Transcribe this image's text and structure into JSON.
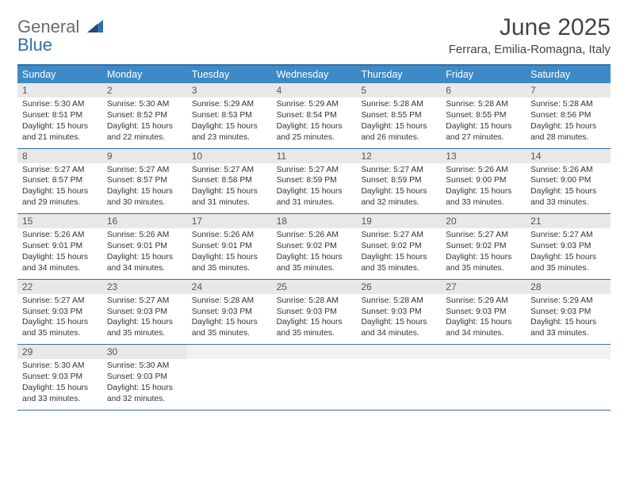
{
  "logo": {
    "line1": "General",
    "line2": "Blue"
  },
  "title": "June 2025",
  "location": "Ferrara, Emilia-Romagna, Italy",
  "colors": {
    "header_bg": "#3d8ac7",
    "border": "#2f6fa8",
    "daynum_bg": "#e8e8e8",
    "empty_bg": "#f2f2f2",
    "text": "#333333",
    "logo_gray": "#6a6a6a",
    "logo_blue": "#2f6fa8"
  },
  "day_labels": [
    "Sunday",
    "Monday",
    "Tuesday",
    "Wednesday",
    "Thursday",
    "Friday",
    "Saturday"
  ],
  "weeks": [
    [
      {
        "n": "1",
        "sr": "Sunrise: 5:30 AM",
        "ss": "Sunset: 8:51 PM",
        "d1": "Daylight: 15 hours",
        "d2": "and 21 minutes."
      },
      {
        "n": "2",
        "sr": "Sunrise: 5:30 AM",
        "ss": "Sunset: 8:52 PM",
        "d1": "Daylight: 15 hours",
        "d2": "and 22 minutes."
      },
      {
        "n": "3",
        "sr": "Sunrise: 5:29 AM",
        "ss": "Sunset: 8:53 PM",
        "d1": "Daylight: 15 hours",
        "d2": "and 23 minutes."
      },
      {
        "n": "4",
        "sr": "Sunrise: 5:29 AM",
        "ss": "Sunset: 8:54 PM",
        "d1": "Daylight: 15 hours",
        "d2": "and 25 minutes."
      },
      {
        "n": "5",
        "sr": "Sunrise: 5:28 AM",
        "ss": "Sunset: 8:55 PM",
        "d1": "Daylight: 15 hours",
        "d2": "and 26 minutes."
      },
      {
        "n": "6",
        "sr": "Sunrise: 5:28 AM",
        "ss": "Sunset: 8:55 PM",
        "d1": "Daylight: 15 hours",
        "d2": "and 27 minutes."
      },
      {
        "n": "7",
        "sr": "Sunrise: 5:28 AM",
        "ss": "Sunset: 8:56 PM",
        "d1": "Daylight: 15 hours",
        "d2": "and 28 minutes."
      }
    ],
    [
      {
        "n": "8",
        "sr": "Sunrise: 5:27 AM",
        "ss": "Sunset: 8:57 PM",
        "d1": "Daylight: 15 hours",
        "d2": "and 29 minutes."
      },
      {
        "n": "9",
        "sr": "Sunrise: 5:27 AM",
        "ss": "Sunset: 8:57 PM",
        "d1": "Daylight: 15 hours",
        "d2": "and 30 minutes."
      },
      {
        "n": "10",
        "sr": "Sunrise: 5:27 AM",
        "ss": "Sunset: 8:58 PM",
        "d1": "Daylight: 15 hours",
        "d2": "and 31 minutes."
      },
      {
        "n": "11",
        "sr": "Sunrise: 5:27 AM",
        "ss": "Sunset: 8:59 PM",
        "d1": "Daylight: 15 hours",
        "d2": "and 31 minutes."
      },
      {
        "n": "12",
        "sr": "Sunrise: 5:27 AM",
        "ss": "Sunset: 8:59 PM",
        "d1": "Daylight: 15 hours",
        "d2": "and 32 minutes."
      },
      {
        "n": "13",
        "sr": "Sunrise: 5:26 AM",
        "ss": "Sunset: 9:00 PM",
        "d1": "Daylight: 15 hours",
        "d2": "and 33 minutes."
      },
      {
        "n": "14",
        "sr": "Sunrise: 5:26 AM",
        "ss": "Sunset: 9:00 PM",
        "d1": "Daylight: 15 hours",
        "d2": "and 33 minutes."
      }
    ],
    [
      {
        "n": "15",
        "sr": "Sunrise: 5:26 AM",
        "ss": "Sunset: 9:01 PM",
        "d1": "Daylight: 15 hours",
        "d2": "and 34 minutes."
      },
      {
        "n": "16",
        "sr": "Sunrise: 5:26 AM",
        "ss": "Sunset: 9:01 PM",
        "d1": "Daylight: 15 hours",
        "d2": "and 34 minutes."
      },
      {
        "n": "17",
        "sr": "Sunrise: 5:26 AM",
        "ss": "Sunset: 9:01 PM",
        "d1": "Daylight: 15 hours",
        "d2": "and 35 minutes."
      },
      {
        "n": "18",
        "sr": "Sunrise: 5:26 AM",
        "ss": "Sunset: 9:02 PM",
        "d1": "Daylight: 15 hours",
        "d2": "and 35 minutes."
      },
      {
        "n": "19",
        "sr": "Sunrise: 5:27 AM",
        "ss": "Sunset: 9:02 PM",
        "d1": "Daylight: 15 hours",
        "d2": "and 35 minutes."
      },
      {
        "n": "20",
        "sr": "Sunrise: 5:27 AM",
        "ss": "Sunset: 9:02 PM",
        "d1": "Daylight: 15 hours",
        "d2": "and 35 minutes."
      },
      {
        "n": "21",
        "sr": "Sunrise: 5:27 AM",
        "ss": "Sunset: 9:03 PM",
        "d1": "Daylight: 15 hours",
        "d2": "and 35 minutes."
      }
    ],
    [
      {
        "n": "22",
        "sr": "Sunrise: 5:27 AM",
        "ss": "Sunset: 9:03 PM",
        "d1": "Daylight: 15 hours",
        "d2": "and 35 minutes."
      },
      {
        "n": "23",
        "sr": "Sunrise: 5:27 AM",
        "ss": "Sunset: 9:03 PM",
        "d1": "Daylight: 15 hours",
        "d2": "and 35 minutes."
      },
      {
        "n": "24",
        "sr": "Sunrise: 5:28 AM",
        "ss": "Sunset: 9:03 PM",
        "d1": "Daylight: 15 hours",
        "d2": "and 35 minutes."
      },
      {
        "n": "25",
        "sr": "Sunrise: 5:28 AM",
        "ss": "Sunset: 9:03 PM",
        "d1": "Daylight: 15 hours",
        "d2": "and 35 minutes."
      },
      {
        "n": "26",
        "sr": "Sunrise: 5:28 AM",
        "ss": "Sunset: 9:03 PM",
        "d1": "Daylight: 15 hours",
        "d2": "and 34 minutes."
      },
      {
        "n": "27",
        "sr": "Sunrise: 5:29 AM",
        "ss": "Sunset: 9:03 PM",
        "d1": "Daylight: 15 hours",
        "d2": "and 34 minutes."
      },
      {
        "n": "28",
        "sr": "Sunrise: 5:29 AM",
        "ss": "Sunset: 9:03 PM",
        "d1": "Daylight: 15 hours",
        "d2": "and 33 minutes."
      }
    ],
    [
      {
        "n": "29",
        "sr": "Sunrise: 5:30 AM",
        "ss": "Sunset: 9:03 PM",
        "d1": "Daylight: 15 hours",
        "d2": "and 33 minutes."
      },
      {
        "n": "30",
        "sr": "Sunrise: 5:30 AM",
        "ss": "Sunset: 9:03 PM",
        "d1": "Daylight: 15 hours",
        "d2": "and 32 minutes."
      },
      {
        "empty": true
      },
      {
        "empty": true
      },
      {
        "empty": true
      },
      {
        "empty": true
      },
      {
        "empty": true
      }
    ]
  ]
}
